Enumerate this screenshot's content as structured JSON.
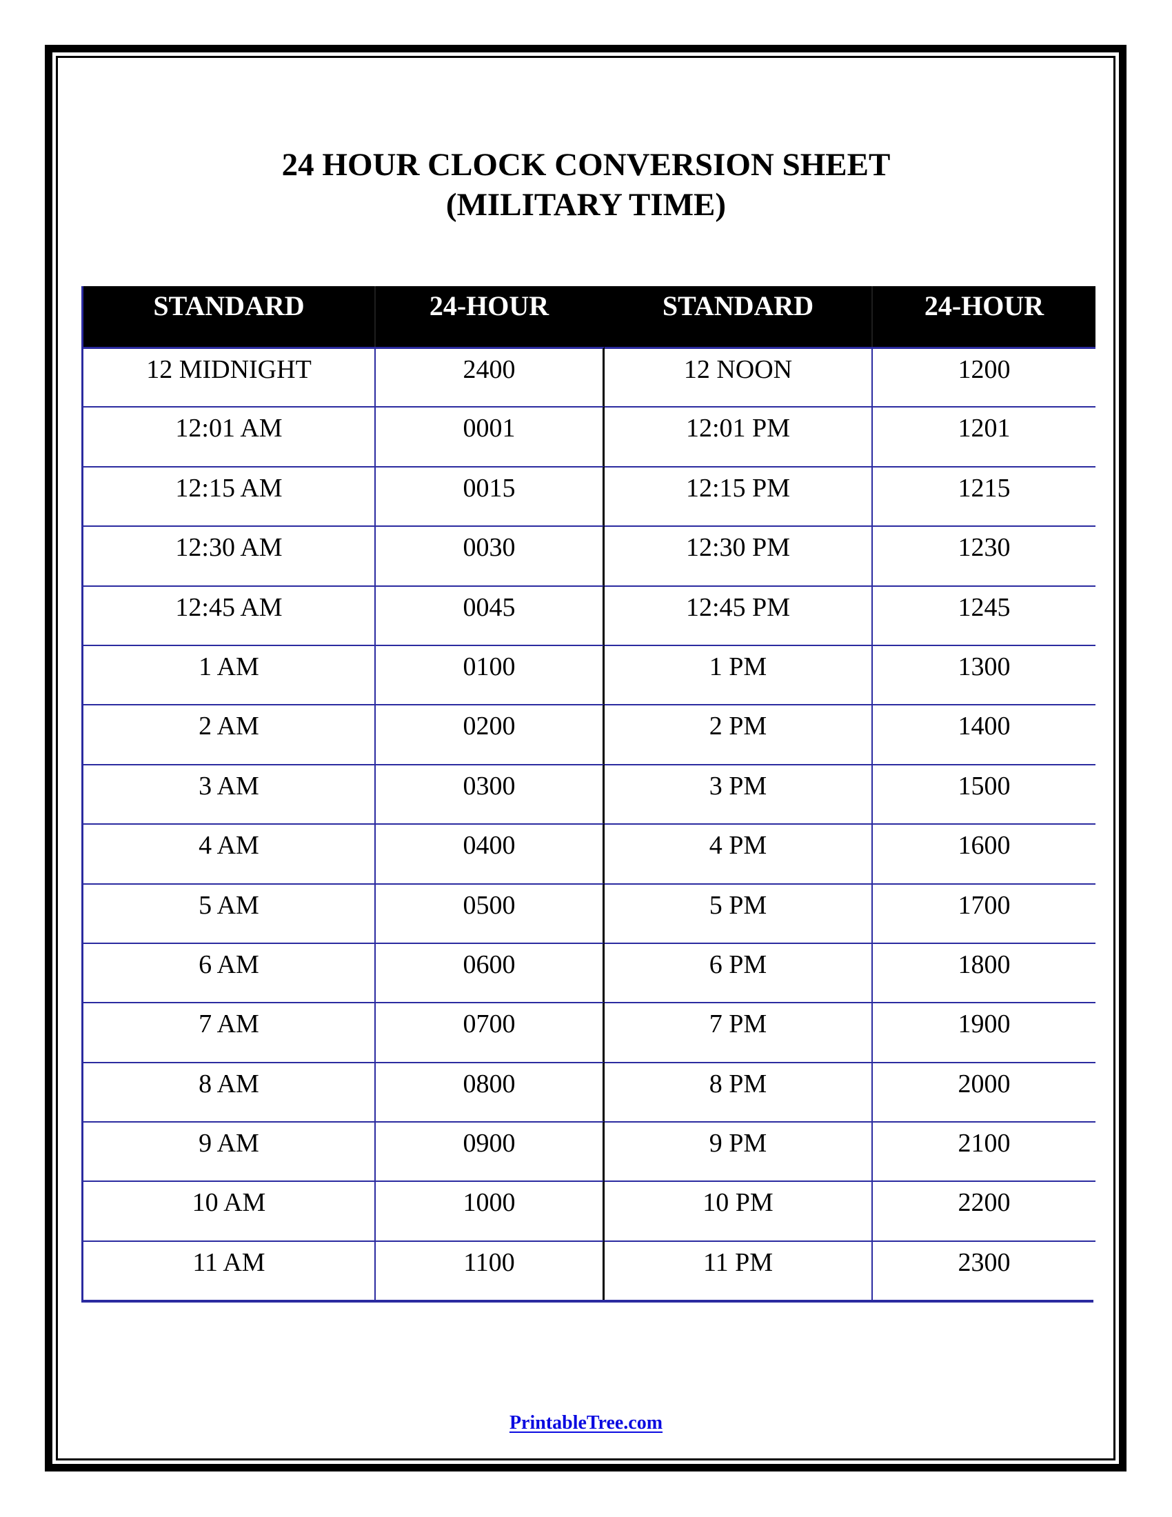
{
  "page": {
    "title_line1": "24 HOUR CLOCK CONVERSION SHEET",
    "title_line2": "(MILITARY TIME)",
    "footer_link": "PrintableTree.com"
  },
  "colors": {
    "grid_blue": "#2b2ba0",
    "divider_black": "#000000",
    "header_bg": "#000000",
    "header_text": "#ffffff",
    "link_blue": "#0b0be0"
  },
  "table": {
    "headers": [
      "STANDARD",
      "24-HOUR",
      "STANDARD",
      "24-HOUR"
    ],
    "rows": [
      [
        "12 MIDNIGHT",
        "2400",
        "12 NOON",
        "1200"
      ],
      [
        "12:01 AM",
        "0001",
        "12:01 PM",
        "1201"
      ],
      [
        "12:15 AM",
        "0015",
        "12:15 PM",
        "1215"
      ],
      [
        "12:30 AM",
        "0030",
        "12:30 PM",
        "1230"
      ],
      [
        "12:45 AM",
        "0045",
        "12:45 PM",
        "1245"
      ],
      [
        "1 AM",
        "0100",
        "1 PM",
        "1300"
      ],
      [
        "2 AM",
        "0200",
        "2 PM",
        "1400"
      ],
      [
        "3 AM",
        "0300",
        "3 PM",
        "1500"
      ],
      [
        "4 AM",
        "0400",
        "4 PM",
        "1600"
      ],
      [
        "5 AM",
        "0500",
        "5 PM",
        "1700"
      ],
      [
        "6 AM",
        "0600",
        "6 PM",
        "1800"
      ],
      [
        "7 AM",
        "0700",
        "7 PM",
        "1900"
      ],
      [
        "8 AM",
        "0800",
        "8 PM",
        "2000"
      ],
      [
        "9 AM",
        "0900",
        "9 PM",
        "2100"
      ],
      [
        "10 AM",
        "1000",
        "10 PM",
        "2200"
      ],
      [
        "11 AM",
        "1100",
        "11 PM",
        "2300"
      ]
    ]
  }
}
